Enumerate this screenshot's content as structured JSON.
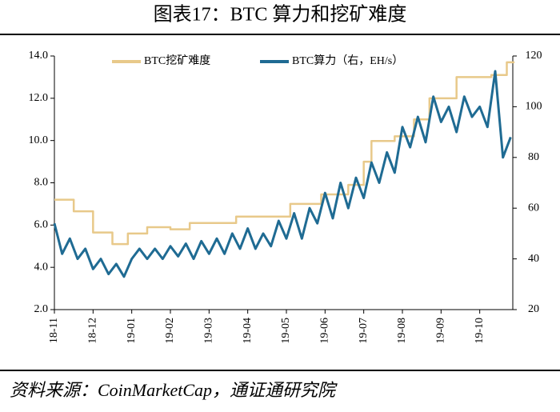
{
  "chart_data": {
    "type": "line",
    "title": "图表17：BTC 算力和挖矿难度",
    "source": "资料来源：CoinMarketCap，通证通研究院",
    "xlim": [
      0,
      12
    ],
    "xticks": [
      {
        "value": 0,
        "label": "18-11"
      },
      {
        "value": 1,
        "label": "18-12"
      },
      {
        "value": 2,
        "label": "19-01"
      },
      {
        "value": 3,
        "label": "19-02"
      },
      {
        "value": 4,
        "label": "19-03"
      },
      {
        "value": 5,
        "label": "19-04"
      },
      {
        "value": 6,
        "label": "19-05"
      },
      {
        "value": 7,
        "label": "19-06"
      },
      {
        "value": 8,
        "label": "19-07"
      },
      {
        "value": 9,
        "label": "19-08"
      },
      {
        "value": 10,
        "label": "19-09"
      },
      {
        "value": 11,
        "label": "19-10"
      }
    ],
    "ylim": [
      2,
      14
    ],
    "yticks": [
      {
        "value": 2,
        "label": "2.0"
      },
      {
        "value": 4,
        "label": "4.0"
      },
      {
        "value": 6,
        "label": "6.0"
      },
      {
        "value": 8,
        "label": "8.0"
      },
      {
        "value": 10,
        "label": "10.0"
      },
      {
        "value": 12,
        "label": "12.0"
      },
      {
        "value": 14,
        "label": "14.0"
      }
    ],
    "y2lim": [
      20,
      120
    ],
    "y2ticks": [
      20,
      40,
      60,
      80,
      100,
      120
    ],
    "legend": "top",
    "series": [
      {
        "name": "BTC挖矿难度",
        "color": "#e8c98a",
        "axis": "y",
        "x": [
          0,
          0.5,
          0.5,
          1.0,
          1.0,
          1.5,
          1.5,
          1.9,
          1.9,
          2.4,
          2.4,
          3.0,
          3.0,
          3.5,
          3.5,
          4.7,
          4.7,
          6.1,
          6.1,
          6.9,
          6.9,
          7.6,
          7.6,
          8.0,
          8.0,
          8.2,
          8.2,
          8.8,
          8.8,
          9.3,
          9.3,
          9.7,
          9.7,
          9.9,
          9.9,
          10.4,
          10.4,
          11.3,
          11.3,
          11.7,
          11.7,
          11.9
        ],
        "values": [
          7.2,
          7.2,
          6.65,
          6.65,
          5.65,
          5.65,
          5.1,
          5.1,
          5.6,
          5.6,
          5.9,
          5.9,
          5.8,
          5.8,
          6.1,
          6.1,
          6.4,
          6.4,
          7.0,
          7.0,
          7.45,
          7.45,
          7.9,
          7.9,
          9.0,
          9.0,
          9.98,
          9.98,
          10.2,
          10.2,
          11.0,
          11.0,
          12.0,
          12.0,
          12.0,
          12.0,
          13.0,
          13.0,
          13.1,
          13.1,
          13.7,
          13.7
        ]
      },
      {
        "name": "BTC算力（右，EH/s）",
        "color": "#1f6b93",
        "axis": "y2",
        "x": [
          0,
          0.2,
          0.4,
          0.6,
          0.8,
          1.0,
          1.2,
          1.4,
          1.6,
          1.8,
          2.0,
          2.2,
          2.4,
          2.6,
          2.8,
          3.0,
          3.2,
          3.4,
          3.6,
          3.8,
          4.0,
          4.2,
          4.4,
          4.6,
          4.8,
          5.0,
          5.2,
          5.4,
          5.6,
          5.8,
          6.0,
          6.2,
          6.4,
          6.6,
          6.8,
          7.0,
          7.2,
          7.4,
          7.6,
          7.8,
          8.0,
          8.2,
          8.4,
          8.6,
          8.8,
          9.0,
          9.2,
          9.4,
          9.6,
          9.8,
          10.0,
          10.2,
          10.4,
          10.6,
          10.8,
          11.0,
          11.2,
          11.4,
          11.6,
          11.8
        ],
        "values": [
          54,
          42,
          48,
          40,
          44,
          36,
          40,
          34,
          38,
          33,
          40,
          44,
          40,
          44,
          40,
          45,
          41,
          46,
          40,
          47,
          42,
          48,
          42,
          50,
          44,
          52,
          44,
          50,
          45,
          55,
          48,
          58,
          48,
          60,
          54,
          66,
          56,
          70,
          60,
          72,
          64,
          78,
          70,
          82,
          74,
          92,
          84,
          96,
          86,
          104,
          94,
          100,
          90,
          104,
          96,
          100,
          92,
          114,
          80,
          88
        ]
      }
    ]
  }
}
